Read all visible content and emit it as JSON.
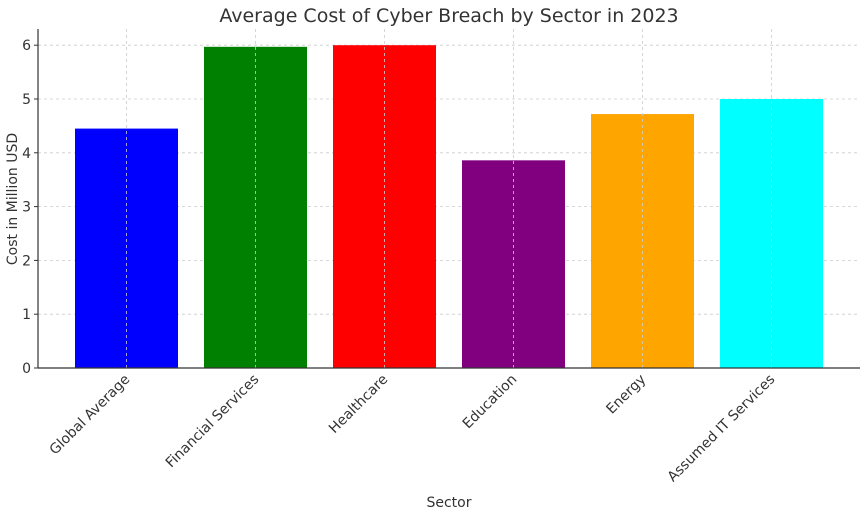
{
  "chart_data": {
    "type": "bar",
    "title": "Average Cost of Cyber Breach by Sector in 2023",
    "xlabel": "Sector",
    "ylabel": "Cost in Million USD",
    "categories": [
      "Global Average",
      "Financial Services",
      "Healthcare",
      "Education",
      "Energy",
      "Assumed IT Services"
    ],
    "values": [
      4.45,
      5.97,
      6.0,
      3.86,
      4.72,
      5.0
    ],
    "colors": [
      "#0000ff",
      "#008000",
      "#ff0000",
      "#800080",
      "#ffa500",
      "#00ffff"
    ],
    "ylim": [
      0,
      6.3
    ],
    "yticks": [
      0,
      1,
      2,
      3,
      4,
      5,
      6
    ],
    "grid": true,
    "legend": null,
    "xtick_rotation": 45
  }
}
